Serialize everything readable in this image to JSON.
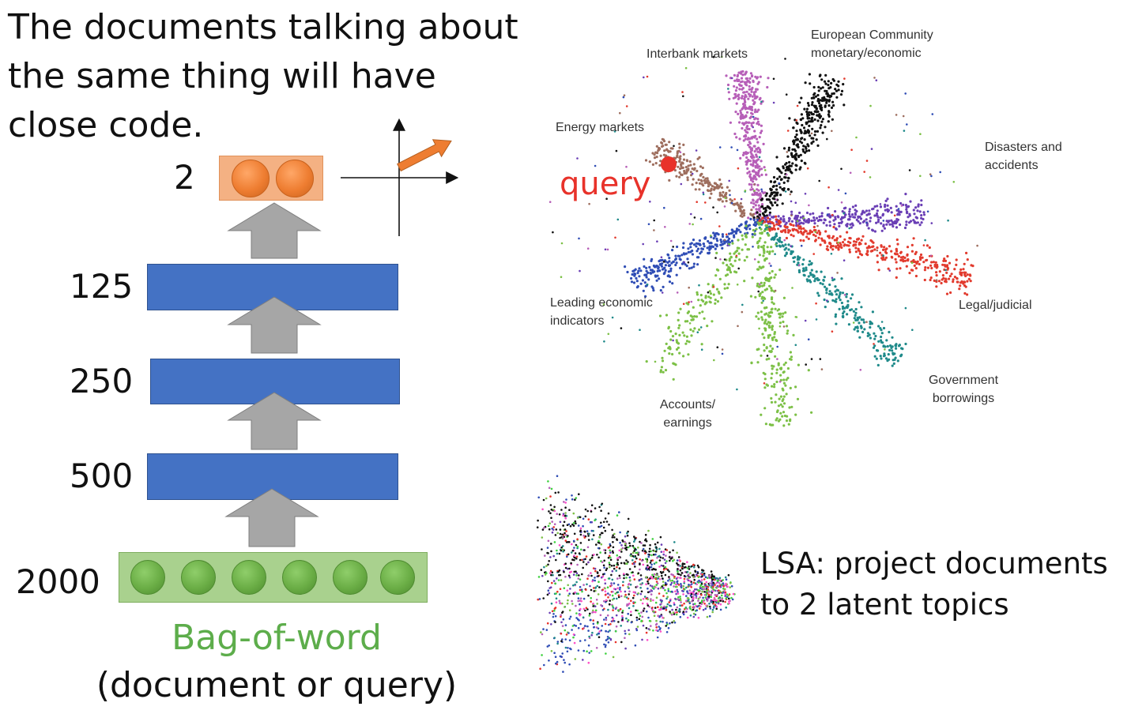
{
  "headline": "The documents talking about the same thing will have close code.",
  "layers": [
    {
      "label": "2"
    },
    {
      "label": "125"
    },
    {
      "label": "250"
    },
    {
      "label": "500"
    },
    {
      "label": "2000"
    }
  ],
  "input": {
    "caption": "Bag-of-word",
    "subcaption": "(document or query)"
  },
  "scatter": {
    "query_label": "query",
    "clusters": [
      {
        "name": "Interbank markets",
        "color": "#b75fb8"
      },
      {
        "name": "European Community monetary/economic",
        "color": "#111111"
      },
      {
        "name": "Energy markets",
        "color": "#9e6e5e"
      },
      {
        "name": "Disasters and accidents",
        "color": "#6a3fb5"
      },
      {
        "name": "Leading economic indicators",
        "color": "#2f4db5"
      },
      {
        "name": "Legal/judicial",
        "color": "#e23b2e"
      },
      {
        "name": "Government borrowings",
        "color": "#1f8a8a"
      },
      {
        "name": "Accounts/ earnings",
        "color": "#7cc046"
      }
    ]
  },
  "lsa": {
    "text": "LSA: project documents to 2 latent topics"
  },
  "colors": {
    "bar": "#4472c4",
    "arrow": "#a6a6a6",
    "input_box": "#a9d18e",
    "code_box": "#f4b183",
    "query": "#e8322a"
  }
}
